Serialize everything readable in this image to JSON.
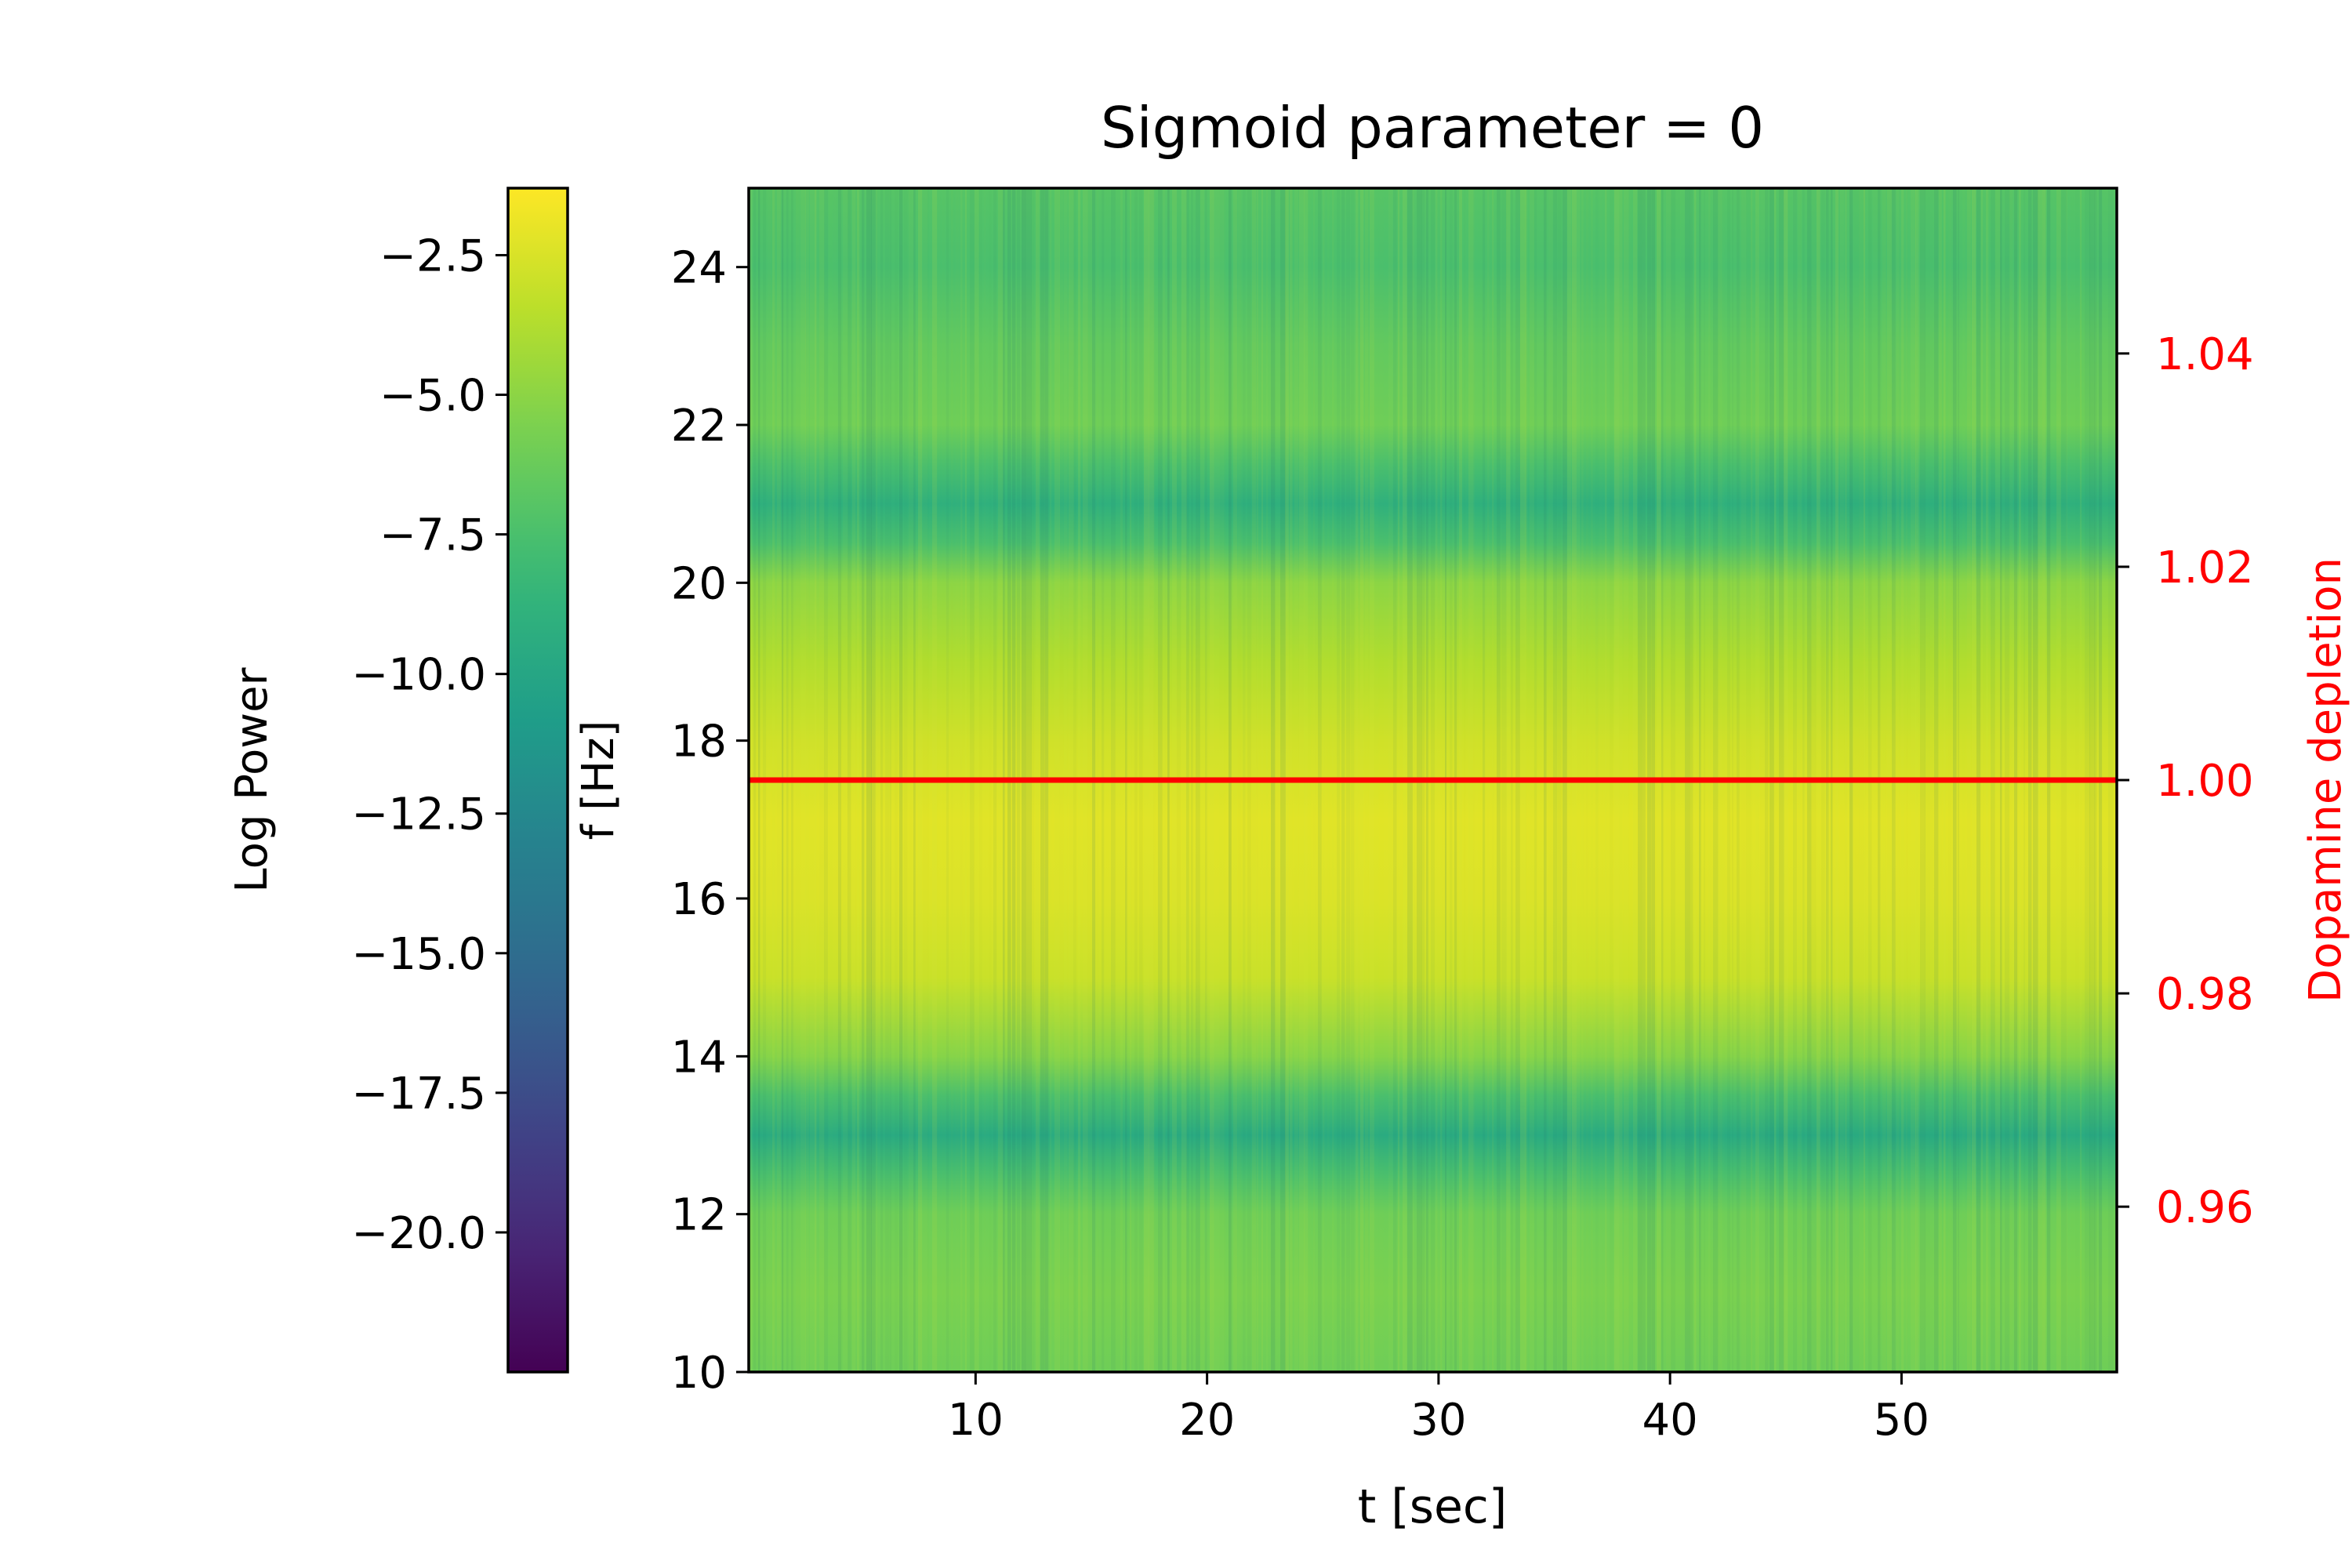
{
  "chart_data": {
    "type": "heatmap",
    "title": "Sigmoid parameter = 0",
    "xlabel": "t [sec]",
    "ylabel": "f [Hz]",
    "y2label": "Dopamine depletion",
    "colorbar_label": "Log Power",
    "colormap": "viridis",
    "xlim": [
      0.2,
      59.3
    ],
    "ylim": [
      10,
      25
    ],
    "y2lim": [
      0.9445,
      1.0555
    ],
    "clim": [
      -22.5,
      -1.3
    ],
    "x_ticks": [
      10,
      20,
      30,
      40,
      50
    ],
    "x_tick_labels": [
      "10",
      "20",
      "30",
      "40",
      "50"
    ],
    "y_ticks": [
      10,
      12,
      14,
      16,
      18,
      20,
      22,
      24
    ],
    "y_tick_labels": [
      "10",
      "12",
      "14",
      "16",
      "18",
      "20",
      "22",
      "24"
    ],
    "y2_ticks": [
      0.96,
      0.98,
      1.0,
      1.02,
      1.04
    ],
    "y2_tick_labels": [
      "0.96",
      "0.98",
      "1.00",
      "1.02",
      "1.04"
    ],
    "cbar_ticks": [
      -2.5,
      -5.0,
      -7.5,
      -10.0,
      -12.5,
      -15.0,
      -17.5,
      -20.0
    ],
    "cbar_tick_labels": [
      "−2.5",
      "−5.0",
      "−7.5",
      "−10.0",
      "−12.5",
      "−15.0",
      "−17.5",
      "−20.0"
    ],
    "heatmap_profile": {
      "frequency_hz": [
        10,
        11,
        12,
        12.5,
        13,
        13.5,
        14,
        15,
        16,
        17,
        18,
        19,
        20,
        20.5,
        21,
        21.5,
        22,
        23,
        24,
        25
      ],
      "log_power": [
        -6.0,
        -5.6,
        -6.0,
        -7.5,
        -9.5,
        -7.5,
        -5.2,
        -3.0,
        -2.4,
        -2.2,
        -2.8,
        -3.8,
        -5.0,
        -7.5,
        -9.0,
        -7.5,
        -6.0,
        -6.5,
        -7.5,
        -7.0
      ]
    },
    "series": [
      {
        "name": "",
        "color": "#ff0000",
        "axis": "y2",
        "x": [
          0.2,
          59.3
        ],
        "y": [
          1.0,
          1.0
        ]
      }
    ],
    "colors": {
      "axis": "#000000",
      "y2_axis": "#ff0000",
      "line": "#ff0000"
    }
  }
}
